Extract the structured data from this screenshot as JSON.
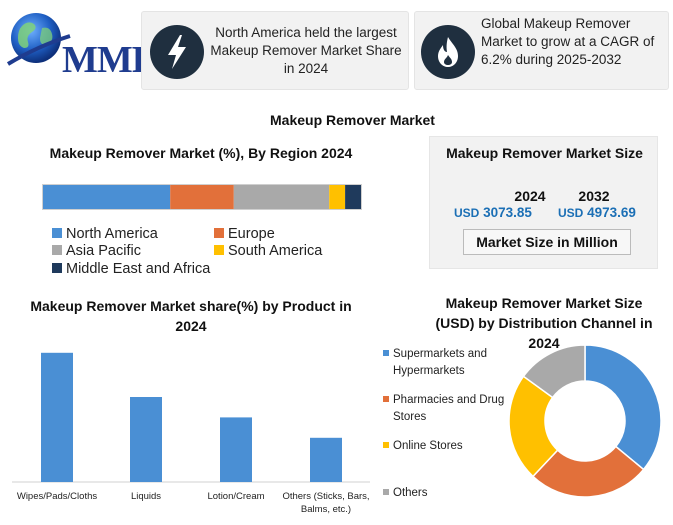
{
  "logo": {
    "text": "MMR",
    "icon": "globe-icon"
  },
  "info_cards": [
    {
      "icon": "lightning-icon",
      "text": "North America held the largest Makeup Remover Market Share in 2024"
    },
    {
      "icon": "flame-icon",
      "text": "Global Makeup Remover Market to grow at a CAGR of 6.2% during 2025-2032"
    }
  ],
  "main_title": "Makeup Remover Market",
  "market_size": {
    "title": "Makeup Remover Market Size",
    "year1": "2024",
    "value1_currency": "USD",
    "value1": "3073.85",
    "year2": "2032",
    "value2_currency": "USD",
    "value2": "4973.69",
    "unit_label": "Market Size in Million"
  },
  "colors": {
    "blue": "#4a8fd4",
    "orange": "#e2703a",
    "gray": "#a9a9a9",
    "yellow": "#ffc000",
    "navy": "#1f3a5c",
    "accent_text": "#1b6fb5"
  },
  "chart_data": [
    {
      "type": "bar",
      "orientation": "horizontal-stacked",
      "title": "Makeup Remover  Market (%), By Region 2024",
      "xlim": [
        0,
        100
      ],
      "series": [
        {
          "name": "North America",
          "value": 40,
          "color": "#4a8fd4"
        },
        {
          "name": "Europe",
          "value": 20,
          "color": "#e2703a"
        },
        {
          "name": "Asia Pacific",
          "value": 30,
          "color": "#a9a9a9"
        },
        {
          "name": "South America",
          "value": 5,
          "color": "#ffc000"
        },
        {
          "name": "Middle East and Africa",
          "value": 5,
          "color": "#1f3a5c"
        }
      ],
      "legend": "bottom",
      "grid": false
    },
    {
      "type": "bar",
      "title": "Makeup Remover Market share(%)  by Product in 2024",
      "categories": [
        "Wipes/Pads/Cloths",
        "Liquids",
        "Lotion/Cream",
        "Others (Sticks, Bars, Balms, etc.)"
      ],
      "values": [
        38,
        25,
        19,
        13
      ],
      "ylim": [
        0,
        40
      ],
      "color": "#4a8fd4",
      "grid": false
    },
    {
      "type": "pie",
      "style": "donut",
      "title": "Makeup Remover  Market Size (USD)  by Distribution Channel in 2024",
      "categories": [
        "Supermarkets and Hypermarkets",
        "Pharmacies and Drug Stores",
        "Online Stores",
        "Others"
      ],
      "values": [
        36,
        26,
        23,
        15
      ],
      "colors": [
        "#4a8fd4",
        "#e2703a",
        "#ffc000",
        "#a9a9a9"
      ],
      "legend": "left"
    }
  ]
}
